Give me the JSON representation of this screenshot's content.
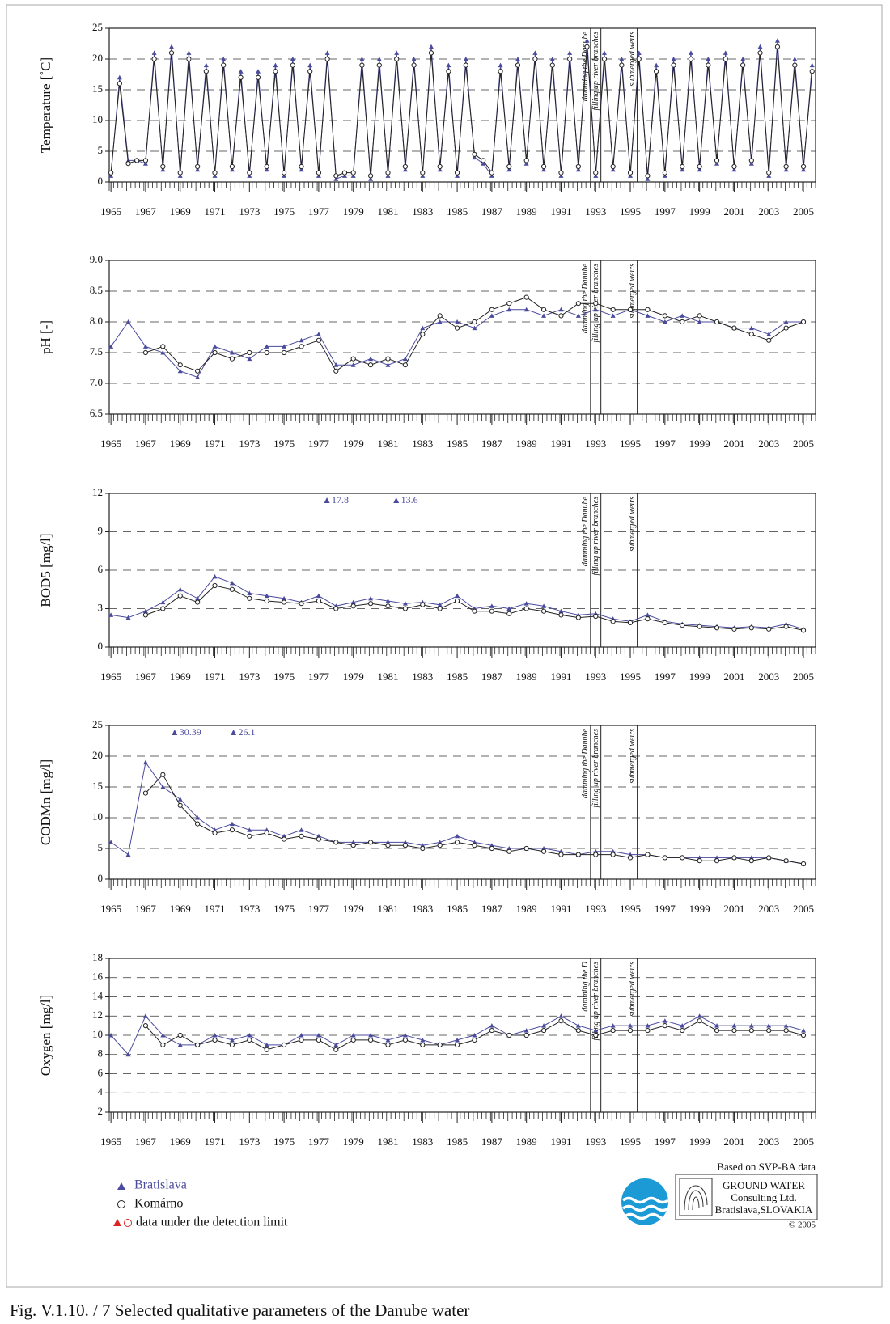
{
  "chart_data": [
    {
      "type": "line",
      "y_label": "Temperature [˚C]",
      "xlim": [
        1964.9,
        2005.7
      ],
      "ylim": [
        0,
        25
      ],
      "yticks": [
        0,
        5,
        10,
        15,
        20,
        25
      ],
      "xticks": [
        1965,
        1967,
        1969,
        1971,
        1973,
        1975,
        1977,
        1979,
        1981,
        1983,
        1985,
        1987,
        1989,
        1991,
        1993,
        1995,
        1997,
        1999,
        2001,
        2003,
        2005
      ],
      "grid": true,
      "events": [
        {
          "x": 1992.7,
          "label": "damming the Danube"
        },
        {
          "x": 1993.3,
          "label": "filling up river branches"
        },
        {
          "x": 1995.4,
          "label": "submerged weirs"
        }
      ],
      "x": [
        1965.0,
        1965.5,
        1966.0,
        1966.5,
        1967.0,
        1967.5,
        1968.0,
        1968.5,
        1969.0,
        1969.5,
        1970.0,
        1970.5,
        1971.0,
        1971.5,
        1972.0,
        1972.5,
        1973.0,
        1973.5,
        1974.0,
        1974.5,
        1975.0,
        1975.5,
        1976.0,
        1976.5,
        1977.0,
        1977.5,
        1978.0,
        1978.5,
        1979.0,
        1979.5,
        1980.0,
        1980.5,
        1981.0,
        1981.5,
        1982.0,
        1982.5,
        1983.0,
        1983.5,
        1984.0,
        1984.5,
        1985.0,
        1985.5,
        1986.0,
        1986.5,
        1987.0,
        1987.5,
        1988.0,
        1988.5,
        1989.0,
        1989.5,
        1990.0,
        1990.5,
        1991.0,
        1991.5,
        1992.0,
        1992.5,
        1993.0,
        1993.5,
        1994.0,
        1994.5,
        1995.0,
        1995.5,
        1996.0,
        1996.5,
        1997.0,
        1997.5,
        1998.0,
        1998.5,
        1999.0,
        1999.5,
        2000.0,
        2000.5,
        2001.0,
        2001.5,
        2002.0,
        2002.5,
        2003.0,
        2003.5,
        2004.0,
        2004.5,
        2005.0,
        2005.5
      ],
      "series": [
        {
          "name": "Bratislava",
          "color": "#4b4b9e",
          "marker": "triangle",
          "values": [
            1,
            17,
            3.5,
            3.5,
            3,
            21,
            2,
            22,
            1,
            21,
            2,
            19,
            1,
            20,
            2,
            18,
            1,
            18,
            2,
            19,
            1,
            20,
            2,
            19,
            1,
            21,
            0.5,
            1,
            1,
            20,
            0.5,
            20,
            1,
            21,
            2,
            20,
            1,
            22,
            2,
            19,
            1,
            20,
            4,
            3,
            1,
            19,
            2,
            20,
            3,
            21,
            2,
            20,
            1,
            21,
            2,
            23,
            1,
            21,
            2,
            20,
            1,
            21,
            0.5,
            19,
            1,
            20,
            2,
            21,
            2,
            20,
            3,
            21,
            2,
            20,
            3,
            22,
            1,
            23,
            2,
            20,
            2,
            19
          ]
        },
        {
          "name": "Komárno",
          "color": "#222222",
          "marker": "circle",
          "values": [
            1.5,
            16,
            3,
            3.5,
            3.5,
            20,
            2.5,
            21,
            1.5,
            20,
            2.5,
            18,
            1.5,
            19,
            2.5,
            17,
            1.5,
            17,
            2.5,
            18,
            1.5,
            19,
            2.5,
            18,
            1.5,
            20,
            1,
            1.5,
            1.5,
            19,
            1,
            19,
            1.5,
            20,
            2.5,
            19,
            1.5,
            21,
            2.5,
            18,
            1.5,
            19,
            4.5,
            3.5,
            1.5,
            18,
            2.5,
            19,
            3.5,
            20,
            2.5,
            19,
            1.5,
            20,
            2.5,
            22,
            1.5,
            20,
            2.5,
            19,
            1.5,
            20,
            1,
            18,
            1.5,
            19,
            2.5,
            20,
            2.5,
            19,
            3.5,
            20,
            2.5,
            19,
            3.5,
            21,
            1.5,
            22,
            2.5,
            19,
            2.5,
            18
          ]
        }
      ]
    },
    {
      "type": "line",
      "y_label": "pH [-]",
      "xlim": [
        1964.9,
        2005.7
      ],
      "ylim": [
        6.5,
        9.0
      ],
      "yticks": [
        6.5,
        {
          "value": 7.0,
          "label": "7.0"
        },
        7.5,
        {
          "value": 8.0,
          "label": "8.0"
        },
        8.5,
        {
          "value": 9.0,
          "label": "9.0"
        }
      ],
      "xticks": [
        1965,
        1967,
        1969,
        1971,
        1973,
        1975,
        1977,
        1979,
        1981,
        1983,
        1985,
        1987,
        1989,
        1991,
        1993,
        1995,
        1997,
        1999,
        2001,
        2003,
        2005
      ],
      "grid": true,
      "events": [
        {
          "x": 1992.7,
          "label": "damming the Danube"
        },
        {
          "x": 1993.3,
          "label": "filling up river branches"
        },
        {
          "x": 1995.4,
          "label": "submerged weirs"
        }
      ],
      "x": [
        1965,
        1966,
        1967,
        1968,
        1969,
        1970,
        1971,
        1972,
        1973,
        1974,
        1975,
        1976,
        1977,
        1978,
        1979,
        1980,
        1981,
        1982,
        1983,
        1984,
        1985,
        1986,
        1987,
        1988,
        1989,
        1990,
        1991,
        1992,
        1993,
        1994,
        1995,
        1996,
        1997,
        1998,
        1999,
        2000,
        2001,
        2002,
        2003,
        2004,
        2005
      ],
      "series": [
        {
          "name": "Bratislava",
          "color": "#4b4b9e",
          "marker": "triangle",
          "values": [
            7.6,
            8.0,
            7.6,
            7.5,
            7.2,
            7.1,
            7.6,
            7.5,
            7.4,
            7.6,
            7.6,
            7.7,
            7.8,
            7.3,
            7.3,
            7.4,
            7.3,
            7.4,
            7.9,
            8.0,
            8.0,
            7.9,
            8.1,
            8.2,
            8.2,
            8.1,
            8.2,
            8.1,
            8.2,
            8.1,
            8.2,
            8.1,
            8.0,
            8.1,
            8.0,
            8.0,
            7.9,
            7.9,
            7.8,
            8.0,
            8.0
          ]
        },
        {
          "name": "Komárno",
          "color": "#222222",
          "marker": "circle",
          "values": [
            null,
            null,
            7.5,
            7.6,
            7.3,
            7.2,
            7.5,
            7.4,
            7.5,
            7.5,
            7.5,
            7.6,
            7.7,
            7.2,
            7.4,
            7.3,
            7.4,
            7.3,
            7.8,
            8.1,
            7.9,
            8.0,
            8.2,
            8.3,
            8.4,
            8.2,
            8.1,
            8.3,
            8.3,
            8.2,
            8.2,
            8.2,
            8.1,
            8.0,
            8.1,
            8.0,
            7.9,
            7.8,
            7.7,
            7.9,
            8.0
          ]
        }
      ]
    },
    {
      "type": "line",
      "y_label": "BOD5 [mg/l]",
      "xlim": [
        1964.9,
        2005.7
      ],
      "ylim": [
        0,
        12
      ],
      "yticks": [
        0,
        3,
        6,
        9,
        12
      ],
      "xticks": [
        1965,
        1967,
        1969,
        1971,
        1973,
        1975,
        1977,
        1979,
        1981,
        1983,
        1985,
        1987,
        1989,
        1991,
        1993,
        1995,
        1997,
        1999,
        2001,
        2003,
        2005
      ],
      "grid": true,
      "events": [
        {
          "x": 1992.7,
          "label": "damming the Danube"
        },
        {
          "x": 1993.3,
          "label": "filling up river branches"
        },
        {
          "x": 1995.4,
          "label": "submerged weirs"
        }
      ],
      "off_scale": [
        {
          "x": 1977.2,
          "value": 17.8,
          "label": "▲17.8"
        },
        {
          "x": 1981.2,
          "value": 13.6,
          "label": "▲13.6"
        }
      ],
      "x": [
        1965,
        1966,
        1967,
        1968,
        1969,
        1970,
        1971,
        1972,
        1973,
        1974,
        1975,
        1976,
        1977,
        1978,
        1979,
        1980,
        1981,
        1982,
        1983,
        1984,
        1985,
        1986,
        1987,
        1988,
        1989,
        1990,
        1991,
        1992,
        1993,
        1994,
        1995,
        1996,
        1997,
        1998,
        1999,
        2000,
        2001,
        2002,
        2003,
        2004,
        2005
      ],
      "series": [
        {
          "name": "Bratislava",
          "color": "#4b4b9e",
          "marker": "triangle",
          "values": [
            2.5,
            2.3,
            2.8,
            3.5,
            4.5,
            3.8,
            5.5,
            5.0,
            4.2,
            4.0,
            3.8,
            3.5,
            4.0,
            3.2,
            3.5,
            3.8,
            3.6,
            3.4,
            3.5,
            3.3,
            4.0,
            3.0,
            3.2,
            3.0,
            3.4,
            3.2,
            2.8,
            2.5,
            2.6,
            2.2,
            2.0,
            2.5,
            2.0,
            1.8,
            1.7,
            1.6,
            1.5,
            1.6,
            1.5,
            1.8,
            1.4
          ]
        },
        {
          "name": "Komárno",
          "color": "#222222",
          "marker": "circle",
          "values": [
            null,
            null,
            2.5,
            3.0,
            4.0,
            3.5,
            4.8,
            4.5,
            3.8,
            3.6,
            3.5,
            3.4,
            3.6,
            3.0,
            3.2,
            3.4,
            3.2,
            3.0,
            3.3,
            3.0,
            3.6,
            2.8,
            2.8,
            2.6,
            3.0,
            2.8,
            2.5,
            2.3,
            2.4,
            2.0,
            1.9,
            2.2,
            1.9,
            1.7,
            1.6,
            1.5,
            1.4,
            1.5,
            1.4,
            1.6,
            1.3
          ]
        }
      ]
    },
    {
      "type": "line",
      "y_label": "CODMn [mg/l]",
      "xlim": [
        1964.9,
        2005.7
      ],
      "ylim": [
        0,
        25
      ],
      "yticks": [
        0,
        5,
        10,
        15,
        20,
        25
      ],
      "xticks": [
        1965,
        1967,
        1969,
        1971,
        1973,
        1975,
        1977,
        1979,
        1981,
        1983,
        1985,
        1987,
        1989,
        1991,
        1993,
        1995,
        1997,
        1999,
        2001,
        2003,
        2005
      ],
      "grid": true,
      "events": [
        {
          "x": 1992.7,
          "label": "damming the Danube"
        },
        {
          "x": 1993.3,
          "label": "filling up river branches"
        },
        {
          "x": 1995.4,
          "label": "submerged weirs"
        }
      ],
      "off_scale": [
        {
          "x": 1968.4,
          "value": 30.39,
          "label": "▲30.39"
        },
        {
          "x": 1971.8,
          "value": 26.1,
          "label": "▲26.1"
        }
      ],
      "x": [
        1965,
        1966,
        1967,
        1968,
        1969,
        1970,
        1971,
        1972,
        1973,
        1974,
        1975,
        1976,
        1977,
        1978,
        1979,
        1980,
        1981,
        1982,
        1983,
        1984,
        1985,
        1986,
        1987,
        1988,
        1989,
        1990,
        1991,
        1992,
        1993,
        1994,
        1995,
        1996,
        1997,
        1998,
        1999,
        2000,
        2001,
        2002,
        2003,
        2004,
        2005
      ],
      "series": [
        {
          "name": "Bratislava",
          "color": "#4b4b9e",
          "marker": "triangle",
          "values": [
            6,
            4,
            19,
            15,
            13,
            10,
            8,
            9,
            8,
            8,
            7,
            8,
            7,
            6,
            6,
            6,
            6,
            6,
            5.5,
            6,
            7,
            6,
            5.5,
            5,
            5,
            5,
            4.5,
            4,
            4.5,
            4.5,
            4,
            4,
            3.5,
            3.5,
            3.5,
            3.5,
            3.5,
            3.5,
            3.5,
            3,
            2.5
          ]
        },
        {
          "name": "Komárno",
          "color": "#222222",
          "marker": "circle",
          "values": [
            null,
            null,
            14,
            17,
            12,
            9,
            7.5,
            8,
            7,
            7.5,
            6.5,
            7,
            6.5,
            6,
            5.5,
            6,
            5.5,
            5.5,
            5,
            5.5,
            6,
            5.5,
            5,
            4.5,
            5,
            4.5,
            4,
            4,
            4,
            4,
            3.5,
            4,
            3.5,
            3.5,
            3,
            3,
            3.5,
            3,
            3.5,
            3,
            2.5
          ]
        }
      ]
    },
    {
      "type": "line",
      "y_label": "Oxygen [mg/l]",
      "xlim": [
        1964.9,
        2005.7
      ],
      "ylim": [
        2,
        18
      ],
      "yticks": [
        2,
        4,
        6,
        8,
        10,
        12,
        14,
        16,
        18
      ],
      "xticks": [
        1965,
        1967,
        1969,
        1971,
        1973,
        1975,
        1977,
        1979,
        1981,
        1983,
        1985,
        1987,
        1989,
        1991,
        1993,
        1995,
        1997,
        1999,
        2001,
        2003,
        2005
      ],
      "grid": true,
      "events": [
        {
          "x": 1992.7,
          "label": "damming the D"
        },
        {
          "x": 1993.3,
          "label": "filling up river branches"
        },
        {
          "x": 1995.4,
          "label": "submerged weirs"
        }
      ],
      "x": [
        1965,
        1966,
        1967,
        1968,
        1969,
        1970,
        1971,
        1972,
        1973,
        1974,
        1975,
        1976,
        1977,
        1978,
        1979,
        1980,
        1981,
        1982,
        1983,
        1984,
        1985,
        1986,
        1987,
        1988,
        1989,
        1990,
        1991,
        1992,
        1993,
        1994,
        1995,
        1996,
        1997,
        1998,
        1999,
        2000,
        2001,
        2002,
        2003,
        2004,
        2005
      ],
      "series": [
        {
          "name": "Bratislava",
          "color": "#4b4b9e",
          "marker": "triangle",
          "values": [
            10,
            8,
            12,
            10,
            9,
            9,
            10,
            9.5,
            10,
            9,
            9,
            10,
            10,
            9,
            10,
            10,
            9.5,
            10,
            9.5,
            9,
            9.5,
            10,
            11,
            10,
            10.5,
            11,
            12,
            11,
            10.5,
            11,
            11,
            11,
            11.5,
            11,
            12,
            11,
            11,
            11,
            11,
            11,
            10.5
          ]
        },
        {
          "name": "Komárno",
          "color": "#222222",
          "marker": "circle",
          "values": [
            null,
            null,
            11,
            9,
            10,
            9,
            9.5,
            9,
            9.5,
            8.5,
            9,
            9.5,
            9.5,
            8.5,
            9.5,
            9.5,
            9,
            9.5,
            9,
            9,
            9,
            9.5,
            10.5,
            10,
            10,
            10.5,
            11.5,
            10.5,
            10,
            10.5,
            10.5,
            10.5,
            11,
            10.5,
            11.5,
            10.5,
            10.5,
            10.5,
            10.5,
            10.5,
            10
          ]
        }
      ]
    }
  ],
  "footer": {
    "legend_note": "data under the detection limit",
    "source": "Based on SVP-BA data",
    "company": [
      "GROUND WATER",
      "Consulting Ltd.",
      "Bratislava,SLOVAKIA"
    ],
    "copyright": "© 2005",
    "caption": "Fig. V.1.10. / 7  Selected qualitative parameters of the Danube water"
  }
}
